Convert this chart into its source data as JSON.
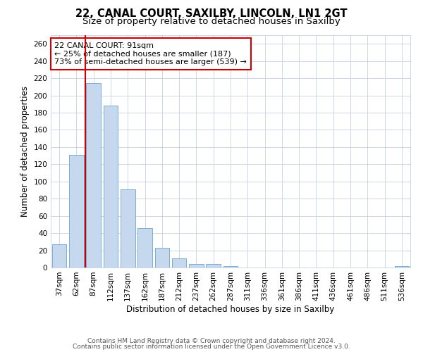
{
  "title_line1": "22, CANAL COURT, SAXILBY, LINCOLN, LN1 2GT",
  "title_line2": "Size of property relative to detached houses in Saxilby",
  "xlabel": "Distribution of detached houses by size in Saxilby",
  "ylabel": "Number of detached properties",
  "categories": [
    "37sqm",
    "62sqm",
    "87sqm",
    "112sqm",
    "137sqm",
    "162sqm",
    "187sqm",
    "212sqm",
    "237sqm",
    "262sqm",
    "287sqm",
    "311sqm",
    "336sqm",
    "361sqm",
    "386sqm",
    "411sqm",
    "436sqm",
    "461sqm",
    "486sqm",
    "511sqm",
    "536sqm"
  ],
  "values": [
    27,
    131,
    214,
    188,
    91,
    46,
    23,
    11,
    4,
    4,
    2,
    0,
    0,
    0,
    0,
    0,
    0,
    0,
    0,
    0,
    2
  ],
  "bar_color": "#c5d8ed",
  "bar_edge_color": "#7bafd4",
  "vline_color": "#cc0000",
  "annotation_text": "22 CANAL COURT: 91sqm\n← 25% of detached houses are smaller (187)\n73% of semi-detached houses are larger (539) →",
  "annotation_box_color": "#ffffff",
  "annotation_box_edge": "#cc0000",
  "ylim": [
    0,
    270
  ],
  "yticks": [
    0,
    20,
    40,
    60,
    80,
    100,
    120,
    140,
    160,
    180,
    200,
    220,
    240,
    260
  ],
  "bg_color": "#ffffff",
  "grid_color": "#ccd6e8",
  "footer_line1": "Contains HM Land Registry data © Crown copyright and database right 2024.",
  "footer_line2": "Contains public sector information licensed under the Open Government Licence v3.0.",
  "title_fontsize": 10.5,
  "subtitle_fontsize": 9.5,
  "axis_label_fontsize": 8.5,
  "tick_fontsize": 7.5,
  "annotation_fontsize": 8,
  "footer_fontsize": 6.5,
  "vline_index": 2
}
